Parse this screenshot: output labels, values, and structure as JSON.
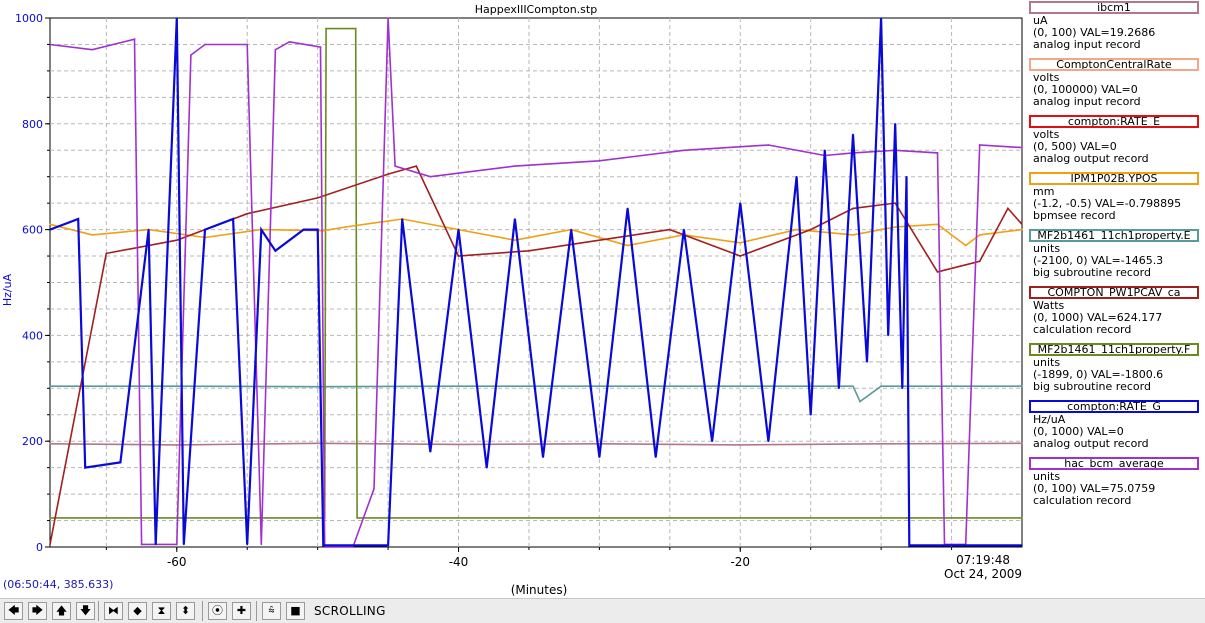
{
  "chart_data": {
    "type": "line",
    "title": "HappexIIICompton.stp",
    "xlabel": "(Minutes)",
    "ylabel": "Hz/uA",
    "xlim": [
      -69,
      0
    ],
    "ylim": [
      0,
      1000
    ],
    "x_ticks": [
      -60,
      -40,
      -20
    ],
    "y_ticks": [
      0,
      200,
      400,
      600,
      800,
      1000
    ],
    "grid": true,
    "end_time": "07:19:48",
    "end_date": "Oct 24, 2009",
    "series": [
      {
        "name": "ibcm1",
        "color": "#b07888",
        "x": [
          -69,
          -60,
          -50,
          -40,
          -30,
          -20,
          -10,
          0
        ],
        "y": [
          195,
          193,
          196,
          194,
          195,
          193,
          195,
          196
        ]
      },
      {
        "name": "MF2b1461_11ch1property.E",
        "color": "#5a9a9a",
        "x": [
          -69,
          -60,
          -50,
          -40,
          -30,
          -20,
          -12,
          -11.5,
          -10,
          0
        ],
        "y": [
          304,
          304,
          303,
          304,
          304,
          304,
          304,
          275,
          304,
          304
        ]
      },
      {
        "name": "MF2b1461_11ch1property.F",
        "color": "#6a8a20",
        "x": [
          -69,
          -49.5,
          -49.4,
          -47.3,
          -47.2,
          -8.2,
          -8.1,
          0
        ],
        "y": [
          55,
          55,
          980,
          980,
          55,
          55,
          55,
          55
        ]
      },
      {
        "name": "IPM1P02B.YPOS",
        "color": "#f0a010",
        "x": [
          -69,
          -66,
          -62,
          -58,
          -54,
          -49.6,
          -48,
          -44,
          -40,
          -36,
          -32,
          -28,
          -24,
          -20,
          -16,
          -12,
          -9,
          -6,
          -4,
          -3,
          0
        ],
        "y": [
          610,
          590,
          600,
          585,
          600,
          598,
          605,
          620,
          600,
          580,
          600,
          570,
          590,
          575,
          600,
          590,
          605,
          610,
          570,
          590,
          600
        ]
      },
      {
        "name": "COMPTON_PW1PCAV_ca",
        "color": "#a02020",
        "x": [
          -69,
          -65,
          -60,
          -55,
          -50,
          -45,
          -43,
          -40,
          -35,
          -30,
          -25,
          -20,
          -15,
          -12,
          -9,
          -6,
          -3,
          -1,
          0
        ],
        "y": [
          5,
          555,
          580,
          630,
          660,
          705,
          720,
          550,
          560,
          580,
          600,
          550,
          600,
          640,
          650,
          520,
          540,
          640,
          610
        ]
      },
      {
        "name": "hac_bcm_average",
        "color": "#a030d0",
        "x": [
          -69,
          -66,
          -63,
          -62.5,
          -60,
          -59,
          -58,
          -55,
          -54,
          -53,
          -52,
          -49.8,
          -49.5,
          -47.5,
          -46,
          -45,
          -44.5,
          -42,
          -36,
          -30,
          -24,
          -18,
          -14,
          -12,
          -9,
          -6,
          -5.5,
          -4,
          -3,
          0
        ],
        "y": [
          950,
          940,
          960,
          5,
          5,
          930,
          950,
          950,
          5,
          940,
          955,
          945,
          0,
          0,
          110,
          1000,
          720,
          700,
          720,
          730,
          750,
          760,
          740,
          745,
          750,
          745,
          5,
          5,
          760,
          755
        ]
      },
      {
        "name": "compton:RATE_G",
        "color": "#0a0ad8",
        "x": [
          -69,
          -67,
          -66.5,
          -64,
          -62,
          -61.5,
          -60,
          -59.5,
          -58,
          -56,
          -55,
          -54,
          -53,
          -51,
          -50,
          -49.6,
          -45,
          -44,
          -42,
          -40,
          -38,
          -36,
          -34,
          -32,
          -30,
          -28,
          -26,
          -24,
          -22,
          -20,
          -18,
          -16,
          -15,
          -14,
          -13,
          -12,
          -11,
          -10,
          -9.5,
          -9,
          -8.5,
          -8.2,
          -8,
          0
        ],
        "y": [
          600,
          620,
          150,
          160,
          600,
          5,
          1000,
          5,
          600,
          620,
          5,
          600,
          560,
          600,
          600,
          3,
          3,
          620,
          180,
          600,
          150,
          620,
          170,
          600,
          170,
          640,
          170,
          600,
          200,
          650,
          200,
          700,
          250,
          750,
          300,
          780,
          350,
          1000,
          400,
          800,
          300,
          700,
          3,
          3
        ]
      }
    ]
  },
  "legend": {
    "entries": [
      {
        "name": "ibcm1",
        "color": "#b07888",
        "fill": "#ffffff",
        "units": "uA",
        "range": "(0, 100) VAL=19.2686",
        "record": "analog input record"
      },
      {
        "name": "ComptonCentralRate",
        "color": "#f0a888",
        "fill": "#ffffff",
        "units": "volts",
        "range": "(0, 100000)  VAL=0",
        "record": "analog input record"
      },
      {
        "name": "compton:RATE_E",
        "color": "#e01010",
        "fill": "#ffffff",
        "units": "volts",
        "range": "(0, 500)  VAL=0",
        "record": "analog output record"
      },
      {
        "name": "IPM1P02B.YPOS",
        "color": "#f0a010",
        "fill": "#ffffff",
        "units": "mm",
        "range": "(-1.2, -0.5) VAL=-0.798895",
        "record": "bpmsee record"
      },
      {
        "name": "MF2b1461_11ch1property.E",
        "color": "#5a9a9a",
        "fill": "#ffffff",
        "units": "units",
        "range": "(-2100, 0) VAL=-1465.3",
        "record": "big subroutine record"
      },
      {
        "name": "COMPTON_PW1PCAV_ca",
        "color": "#a02020",
        "fill": "#ffffff",
        "units": "Watts",
        "range": "(0, 1000) VAL=624.177",
        "record": "calculation record"
      },
      {
        "name": "MF2b1461_11ch1property.F",
        "color": "#6a8a20",
        "fill": "#ffffff",
        "units": "units",
        "range": "(-1899, 0) VAL=-1800.6",
        "record": "big subroutine record"
      },
      {
        "name": "compton:RATE_G",
        "color": "#0a0ad8",
        "fill": "#ffffff",
        "units": "Hz/uA",
        "range": "(0, 1000) VAL=0",
        "record": "analog output record"
      },
      {
        "name": "hac_bcm_average",
        "color": "#a030d0",
        "fill": "#ffffff",
        "units": "units",
        "range": "(0, 100) VAL=75.0759",
        "record": "calculation record"
      }
    ]
  },
  "coordinate_readout": "(06:50:44, 385.633)",
  "toolbar": {
    "buttons": [
      {
        "name": "arrow-left-icon",
        "glyph": "🡄"
      },
      {
        "name": "arrow-right-icon",
        "glyph": "🡆"
      },
      {
        "name": "arrow-up-icon",
        "glyph": "🡅"
      },
      {
        "name": "arrow-down-icon",
        "glyph": "🡇"
      },
      {
        "name": "zoom-in-horizontal-icon",
        "glyph": "⧓"
      },
      {
        "name": "zoom-out-horizontal-icon",
        "glyph": "◆"
      },
      {
        "name": "zoom-in-vertical-icon",
        "glyph": "⧗"
      },
      {
        "name": "zoom-out-vertical-icon",
        "glyph": "⬍"
      },
      {
        "name": "record-icon",
        "glyph": "⦿"
      },
      {
        "name": "add-icon",
        "glyph": "✚"
      },
      {
        "name": "scroll-mode-icon",
        "glyph": "⩯"
      },
      {
        "name": "stop-icon",
        "glyph": "■"
      }
    ],
    "mode_label": "SCROLLING"
  }
}
